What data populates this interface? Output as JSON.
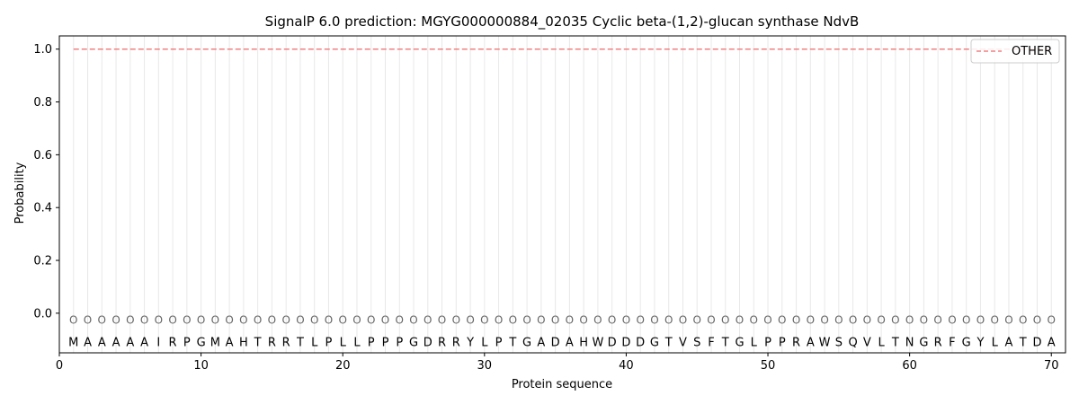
{
  "chart_data": {
    "type": "line",
    "title": "SignalP 6.0 prediction: MGYG000000884_02035 Cyclic beta-(1,2)-glucan synthase NdvB",
    "xlabel": "Protein sequence",
    "ylabel": "Probability",
    "xlim": [
      0,
      71
    ],
    "ylim": [
      -0.15,
      1.05
    ],
    "xticks": [
      0,
      10,
      20,
      30,
      40,
      50,
      60,
      70
    ],
    "yticks": [
      0.0,
      0.2,
      0.4,
      0.6,
      0.8,
      1.0
    ],
    "xtick_labels": [
      "0",
      "10",
      "20",
      "30",
      "40",
      "50",
      "60",
      "70"
    ],
    "ytick_labels": [
      "0.0",
      "0.2",
      "0.4",
      "0.6",
      "0.8",
      "1.0"
    ],
    "sequence": [
      "M",
      "A",
      "A",
      "A",
      "A",
      "A",
      "I",
      "R",
      "P",
      "G",
      "M",
      "A",
      "H",
      "T",
      "R",
      "R",
      "T",
      "L",
      "P",
      "L",
      "L",
      "P",
      "P",
      "P",
      "G",
      "D",
      "R",
      "R",
      "Y",
      "L",
      "P",
      "T",
      "G",
      "A",
      "D",
      "A",
      "H",
      "W",
      "D",
      "D",
      "D",
      "G",
      "T",
      "V",
      "S",
      "F",
      "T",
      "G",
      "L",
      "P",
      "P",
      "R",
      "A",
      "W",
      "S",
      "Q",
      "V",
      "L",
      "T",
      "N",
      "G",
      "R",
      "F",
      "G",
      "Y",
      "L",
      "A",
      "T",
      "D",
      "A"
    ],
    "predicted_label": "O",
    "series": [
      {
        "name": "OTHER",
        "style": "dashed",
        "color": "#f08080",
        "x_start": 1,
        "x_end": 70,
        "value": 1.0
      }
    ],
    "legend_position": "top-right",
    "grid": "vertical lines at each residue"
  }
}
